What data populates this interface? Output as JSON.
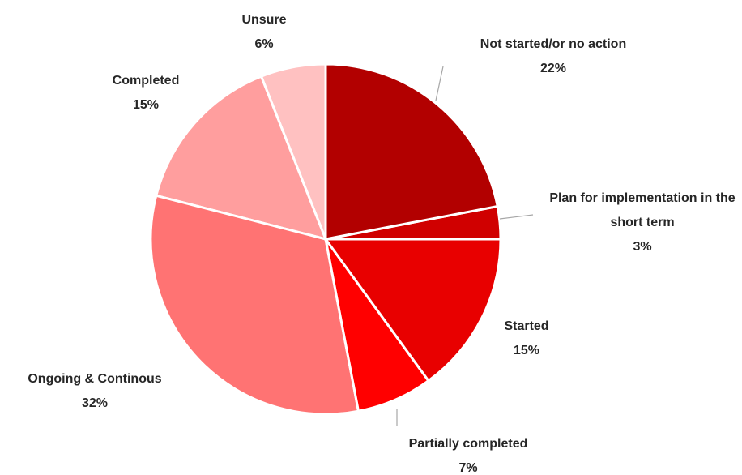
{
  "chart_data": {
    "type": "pie",
    "categories": [
      "Not started/or no action",
      "Plan for implementation in the short term",
      "Started",
      "Partially completed",
      "Ongoing & Continous",
      "Completed",
      "Unsure"
    ],
    "values": [
      22,
      3,
      15,
      7,
      32,
      15,
      6
    ],
    "value_labels": [
      "22%",
      "3%",
      "15%",
      "7%",
      "32%",
      "15%",
      "6%"
    ],
    "colors": [
      "#b20000",
      "#d00000",
      "#e80000",
      "#ff0000",
      "#ff7373",
      "#ff9e9e",
      "#ffc1c1"
    ]
  }
}
